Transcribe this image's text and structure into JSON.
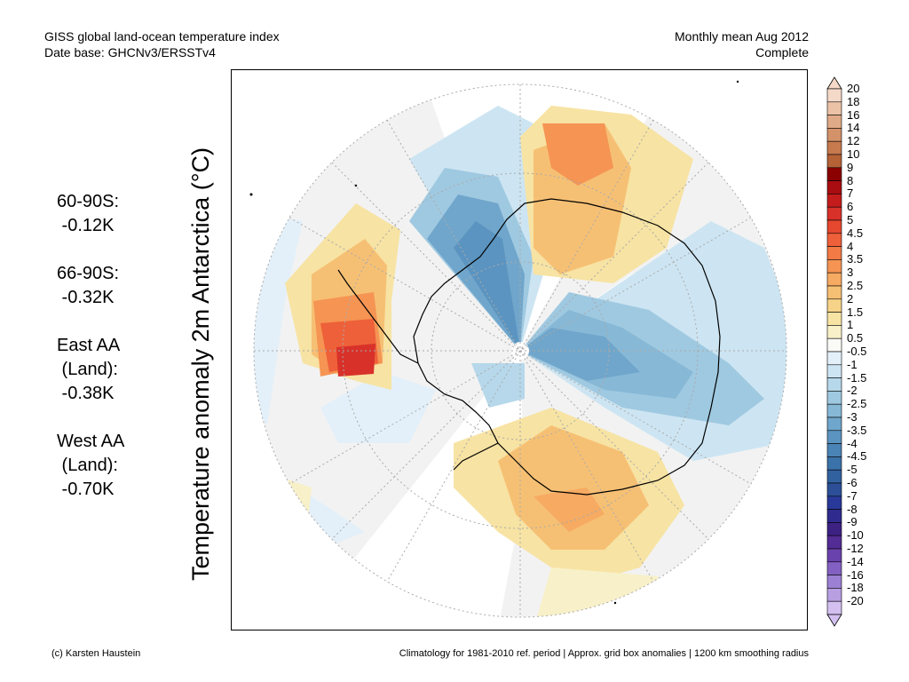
{
  "header": {
    "left_line1": "GISS global land-ocean temperature index",
    "left_line2": "Date base: GHCNv3/ERSSTv4",
    "right_line1": "Monthly mean Aug 2012",
    "right_line2": "Complete"
  },
  "map": {
    "ylabel": "Temperature anomaly 2m Antarctica (°C)"
  },
  "stats": [
    {
      "text": "60-90S:\n -0.12K"
    },
    {
      "text": "66-90S:\n -0.32K"
    },
    {
      "text": "East AA\n (Land):\n -0.38K"
    },
    {
      "text": "West AA\n (Land):\n -0.70K"
    }
  ],
  "colorbar": {
    "labels": [
      "20",
      "18",
      "16",
      "14",
      "12",
      "10",
      "9",
      "8",
      "7",
      "6",
      "5",
      "4.5",
      "4",
      "3.5",
      "3",
      "2.5",
      "2",
      "1.5",
      "1",
      "0.5",
      "-0.5",
      "-1",
      "-1.5",
      "-2",
      "-2.5",
      "-3",
      "-3.5",
      "-4",
      "-4.5",
      "-5",
      "-6",
      "-7",
      "-8",
      "-9",
      "-10",
      "-12",
      "-14",
      "-16",
      "-18",
      "-20"
    ],
    "colors": [
      "#f5d9c8",
      "#ebc2a6",
      "#dfaa87",
      "#d39269",
      "#c67a4e",
      "#b56237",
      "#8b0000",
      "#a90d12",
      "#c41c1c",
      "#d8312a",
      "#e5472f",
      "#ee6039",
      "#f27a45",
      "#f59453",
      "#f6aa62",
      "#f6c074",
      "#f6d388",
      "#f7e3a3",
      "#f8f0c8",
      "#fafaf6",
      "#e3f0f9",
      "#cde5f2",
      "#b6d8ea",
      "#9fc9e1",
      "#87b8d6",
      "#70a6cb",
      "#5b94c0",
      "#4a83b5",
      "#3c72aa",
      "#3261a0",
      "#2c4f98",
      "#29399a",
      "#2f2b8e",
      "#3d2183",
      "#542c95",
      "#6a42ad",
      "#8361c2",
      "#9c80d3",
      "#b79fe2",
      "#d3c0f0"
    ]
  },
  "footer": {
    "left": "(c) Karsten Haustein",
    "right": "Climatology for 1981-2010 ref. period | Approx. grid box anomalies | 1200 km smoothing radius"
  }
}
